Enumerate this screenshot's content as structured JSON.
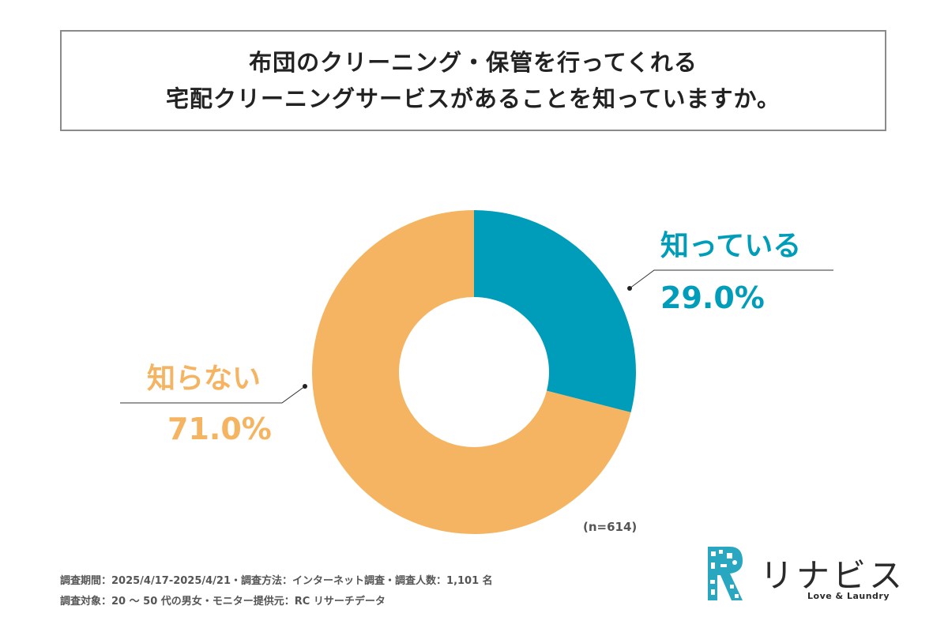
{
  "title": {
    "line1": "布団のクリーニング・保管を行ってくれる",
    "line2": "宅配クリーニングサービスがあることを知っていますか。"
  },
  "chart_data": {
    "type": "pie",
    "donut": true,
    "slices": [
      {
        "label": "知っている",
        "value": 29.0,
        "display": "29.0%",
        "color": "#009dba"
      },
      {
        "label": "知らない",
        "value": 71.0,
        "display": "71.0%",
        "color": "#f5b461"
      }
    ],
    "note": "(n=614)"
  },
  "footer": {
    "line1": "調査期間：2025/4/17-2025/4/21・調査方法：インターネット調査・調査人数：1,101 名",
    "line2": "調査対象：20 〜 50 代の男女・モニター提供元：RC リサーチデータ"
  },
  "logo": {
    "text": "リナビス",
    "tagline": "Love & Laundry",
    "icon": "rinabis-mosaic-logo-icon",
    "color": "#2aa7c0"
  }
}
